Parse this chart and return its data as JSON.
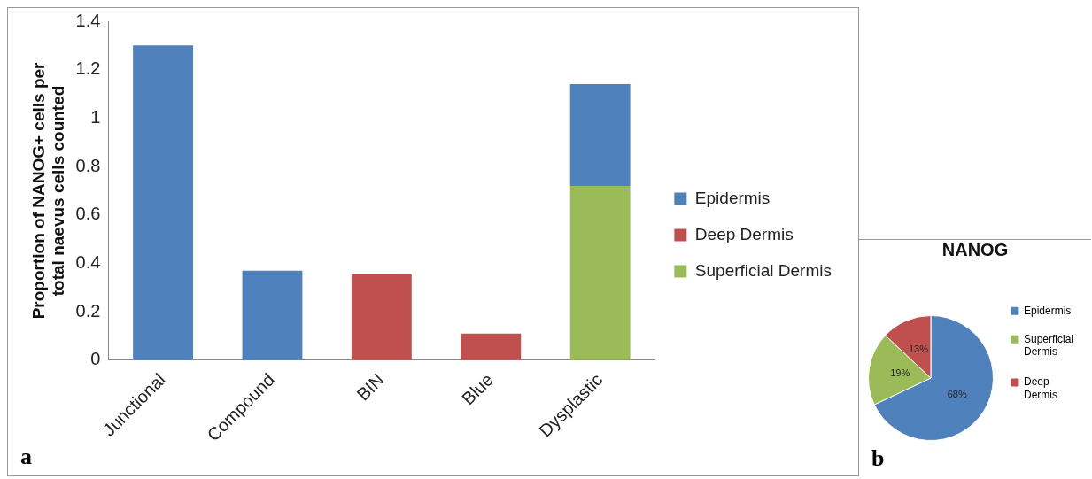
{
  "chart_data": [
    {
      "type": "bar",
      "ylabel": "Proportion of NANOG+ cells per total naevus cells counted",
      "categories": [
        "Junctional",
        "Compound",
        "BIN",
        "Blue",
        "Dysplastic"
      ],
      "stacked": true,
      "series": [
        {
          "name": "Superficial Dermis",
          "color": "#9bbb59",
          "values": [
            null,
            null,
            null,
            null,
            0.72
          ]
        },
        {
          "name": "Deep Dermis",
          "color": "#c0504d",
          "values": [
            null,
            null,
            0.355,
            0.11,
            null
          ]
        },
        {
          "name": "Epidermis",
          "color": "#4f81bd",
          "values": [
            1.3,
            0.37,
            null,
            null,
            0.42
          ]
        }
      ],
      "ylim": [
        0,
        1.4
      ],
      "yticks": [
        0,
        0.2,
        0.4,
        0.6,
        0.8,
        1,
        1.2,
        1.4
      ],
      "grid": false,
      "legend": "right",
      "annotations": [
        "a"
      ]
    },
    {
      "type": "pie",
      "title": "NANOG",
      "categories": [
        "Epidermis",
        "Superficial Dermis",
        "Deep Dermis"
      ],
      "values": [
        68,
        19,
        13
      ],
      "colors": [
        "#4f81bd",
        "#9bbb59",
        "#c0504d"
      ],
      "value_labels": [
        "68%",
        "19%",
        "13%"
      ],
      "legend": "right",
      "annotations": [
        "b"
      ]
    }
  ]
}
